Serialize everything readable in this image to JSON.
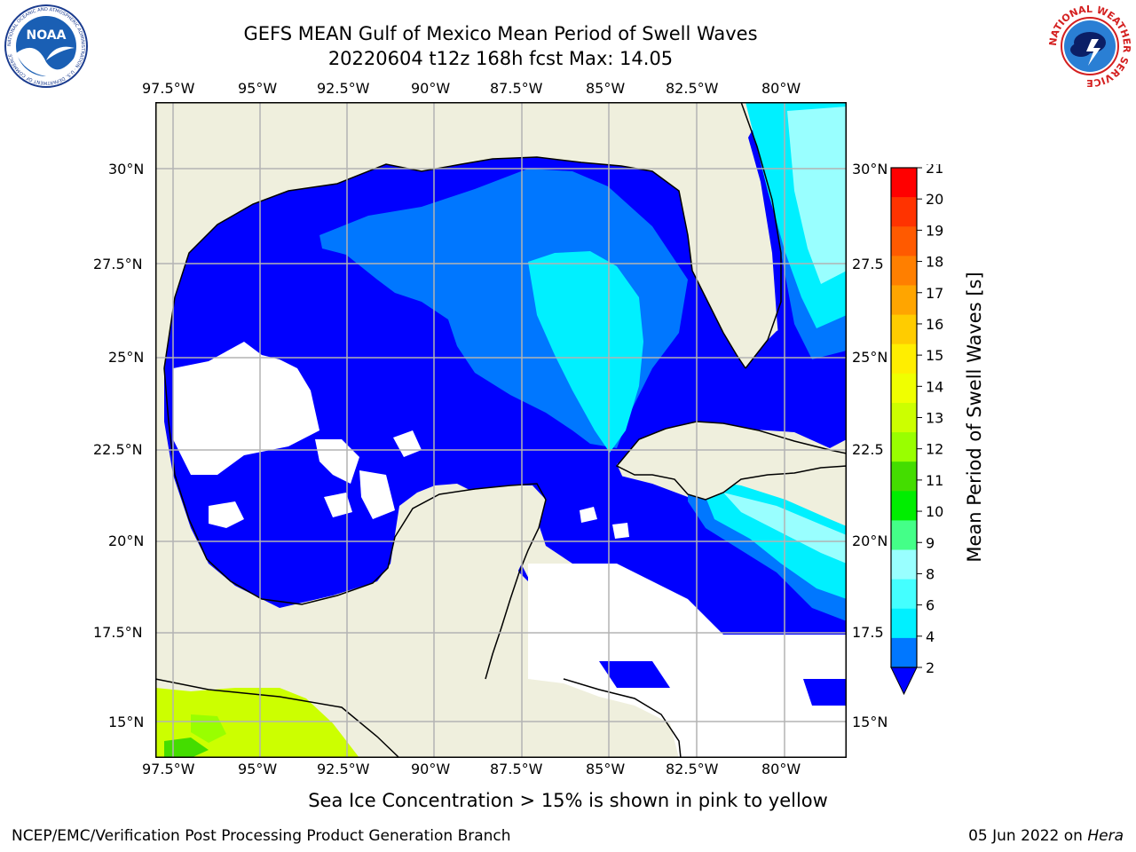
{
  "header": {
    "title": "GEFS MEAN Gulf of Mexico Mean Period of Swell Waves",
    "subtitle": "20220604 t12z 168h fcst   Max: 14.05"
  },
  "logos": {
    "left": {
      "text": "NOAA",
      "ring_text": "NATIONAL OCEANIC AND ATMOSPHERIC ADMINISTRATION · U.S. DEPARTMENT OF COMMERCE"
    },
    "right": {
      "ring_text": "NATIONAL WEATHER SERVICE"
    }
  },
  "map": {
    "lon_labels": [
      "97.5°W",
      "95°W",
      "92.5°W",
      "90°W",
      "87.5°W",
      "85°W",
      "82.5°W",
      "80°W"
    ],
    "lat_labels_left": [
      "30°N",
      "27.5°N",
      "25°N",
      "22.5°N",
      "20°N",
      "17.5°N",
      "15°N"
    ],
    "lat_labels_right": [
      "30°N",
      "27.5",
      "25°N",
      "22.5",
      "20°N",
      "17.5",
      "15°N"
    ],
    "colors": {
      "land": "#efefdd",
      "grid": "#b3b3b3"
    }
  },
  "colorbar": {
    "label": "Mean Period of Swell Waves [s]",
    "ticks": [
      "21",
      "20",
      "19",
      "18",
      "17",
      "16",
      "15",
      "14",
      "13",
      "12",
      "11",
      "10",
      "9",
      "8",
      "6",
      "4",
      "2"
    ],
    "colors": [
      "#ff0000",
      "#ff3300",
      "#ff5a00",
      "#ff7f00",
      "#ffa500",
      "#ffcc00",
      "#ffee00",
      "#f0ff00",
      "#ccff00",
      "#99ff00",
      "#44dd00",
      "#00ee00",
      "#44ff88",
      "#99ffff",
      "#44ffff",
      "#00f0ff",
      "#0077ff",
      "#0000ff"
    ]
  },
  "footer": {
    "note": "Sea Ice Concentration > 15% is shown in pink to yellow",
    "left_credit": "NCEP/EMC/Verification Post Processing Product Generation Branch",
    "right_credit_date": "05 Jun 2022 on ",
    "right_credit_host": "Hera"
  }
}
